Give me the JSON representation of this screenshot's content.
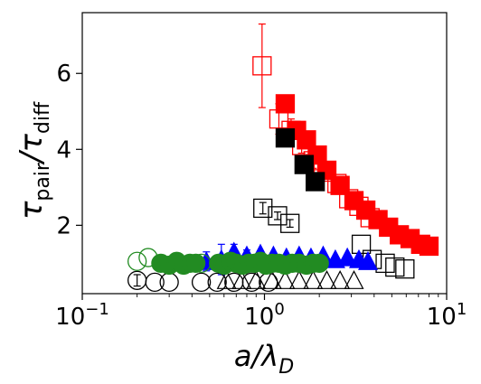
{
  "chart_data": {
    "type": "scatter",
    "xscale": "log",
    "xlim": [
      0.1,
      10
    ],
    "ylim": [
      0.2,
      7.6
    ],
    "x_ticks": [
      {
        "value": 0.1,
        "base": "10",
        "exp": "−1"
      },
      {
        "value": 1,
        "base": "10",
        "exp": "0"
      },
      {
        "value": 10,
        "base": "10",
        "exp": "1"
      }
    ],
    "y_ticks": [
      {
        "value": 2,
        "label": "2"
      },
      {
        "value": 4,
        "label": "4"
      },
      {
        "value": 6,
        "label": "6"
      }
    ],
    "xlabel": {
      "main": "a/λ",
      "sub": "D"
    },
    "ylabel": {
      "main": "τ",
      "sub1": "pair",
      "mid": "/τ",
      "sub2": "diff"
    },
    "grid": false,
    "legend": "none",
    "series": [
      {
        "marker": "square",
        "fill": "open",
        "color": "#ff0000",
        "x": [
          0.97,
          1.2,
          1.4,
          1.6,
          1.85,
          2.1,
          2.5,
          2.9,
          3.3,
          3.8
        ],
        "y": [
          6.2,
          4.8,
          4.5,
          4.1,
          3.7,
          3.4,
          3.1,
          2.7,
          2.5,
          2.2
        ],
        "yerr": [
          1.1,
          0.4,
          0.3,
          0.2,
          0.2,
          0,
          0,
          0,
          0,
          0
        ]
      },
      {
        "marker": "square",
        "fill": "filled",
        "color": "#ff0000",
        "x": [
          1.3,
          1.5,
          1.7,
          1.95,
          2.2,
          2.6,
          3.1,
          3.6,
          4.2,
          4.8,
          5.5,
          6.3,
          7.2,
          8.0
        ],
        "y": [
          5.2,
          4.5,
          4.25,
          3.85,
          3.45,
          3.05,
          2.65,
          2.4,
          2.15,
          1.95,
          1.75,
          1.65,
          1.5,
          1.45
        ]
      },
      {
        "marker": "square",
        "fill": "filled",
        "color": "#000000",
        "x": [
          1.3,
          1.65,
          1.9
        ],
        "y": [
          4.3,
          3.6,
          3.15
        ]
      },
      {
        "marker": "square",
        "fill": "open",
        "color": "#000000",
        "x": [
          0.98,
          1.18,
          1.38,
          3.4,
          3.9,
          4.6,
          5.2,
          5.9
        ],
        "y": [
          2.45,
          2.25,
          2.05,
          1.5,
          1.1,
          1.0,
          0.9,
          0.85
        ],
        "yerr": [
          0.15,
          0.1,
          0.1,
          0,
          0,
          0,
          0,
          0
        ]
      },
      {
        "marker": "triangle",
        "fill": "open",
        "color": "#000000",
        "x": [
          0.62,
          0.75,
          0.9,
          1.1,
          1.3,
          1.55,
          1.85,
          2.2,
          2.6,
          3.1
        ],
        "y": [
          0.55,
          0.55,
          0.55,
          0.55,
          0.55,
          0.55,
          0.55,
          0.55,
          0.55,
          0.55
        ]
      },
      {
        "marker": "triangle",
        "fill": "filled",
        "color": "#0000ff",
        "x": [
          0.48,
          0.58,
          0.68,
          0.8,
          0.95,
          1.12,
          1.32,
          1.55,
          1.8,
          2.1,
          2.45,
          2.85,
          3.3,
          3.7
        ],
        "y": [
          1.05,
          1.1,
          1.3,
          1.2,
          1.25,
          1.2,
          1.15,
          1.2,
          1.15,
          1.2,
          1.1,
          1.15,
          1.1,
          1.05
        ],
        "yerr": [
          0.25,
          0.4,
          0.2,
          0.15,
          0,
          0,
          0,
          0,
          0,
          0,
          0,
          0,
          0,
          0
        ]
      },
      {
        "marker": "circle",
        "fill": "open",
        "color": "#000000",
        "x": [
          0.2,
          0.25,
          0.3,
          0.45,
          0.55,
          0.68,
          0.85,
          1.05
        ],
        "y": [
          0.55,
          0.5,
          0.5,
          0.5,
          0.5,
          0.5,
          0.5,
          0.5
        ],
        "yerr": [
          0.15,
          0,
          0,
          0,
          0,
          0,
          0,
          0
        ]
      },
      {
        "marker": "circle",
        "fill": "open",
        "color": "#228b22",
        "x": [
          0.2,
          0.23,
          0.45
        ],
        "y": [
          1.05,
          1.15,
          1.0
        ]
      },
      {
        "marker": "circle",
        "fill": "filled",
        "color": "#228b22",
        "x": [
          0.27,
          0.3,
          0.33,
          0.36,
          0.39,
          0.42,
          0.56,
          0.6,
          0.65,
          0.7,
          0.76,
          0.82,
          0.88,
          0.95,
          1.02,
          1.1,
          1.2,
          1.3,
          1.42,
          1.55,
          1.7,
          1.85,
          2.0
        ],
        "y": [
          1.0,
          0.95,
          1.05,
          0.95,
          1.0,
          1.0,
          1.0,
          0.95,
          1.05,
          1.0,
          0.95,
          1.0,
          1.0,
          1.05,
          0.95,
          1.0,
          1.0,
          0.95,
          1.0,
          1.0,
          0.95,
          1.0,
          1.0
        ]
      }
    ]
  }
}
